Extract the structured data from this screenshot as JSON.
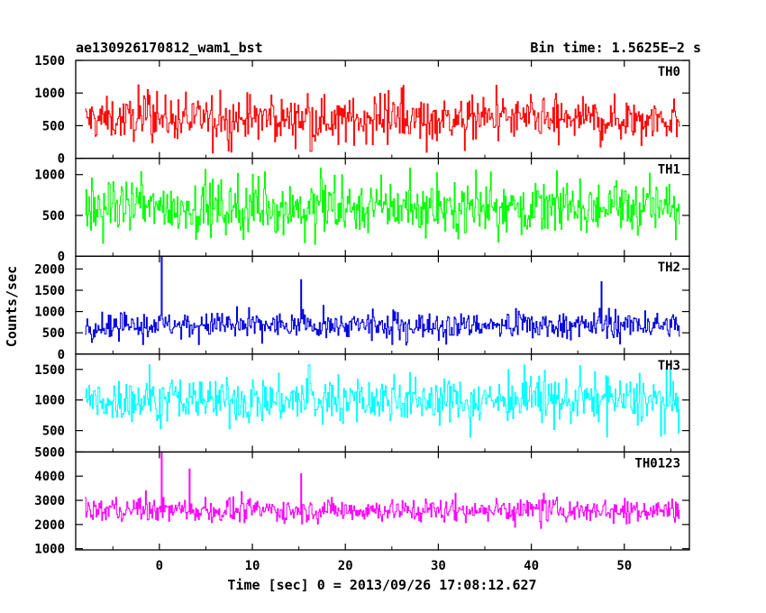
{
  "header": {
    "title": "ae130926170812_wam1_bst",
    "bin_time": "Bin time: 1.5625E−2 s"
  },
  "chart_data": {
    "type": "line",
    "plot_style": "histogram-step",
    "xlabel": "Time [sec] 0 = 2013/09/26 17:08:12.627",
    "ylabel": "Counts/sec",
    "xlim": [
      -9,
      57
    ],
    "x_ticks": [
      0,
      10,
      20,
      30,
      40,
      50
    ],
    "x_tick_labels": [
      "0",
      "10",
      "20",
      "30",
      "40",
      "50"
    ],
    "x_data_range": [
      -8,
      56
    ],
    "bin_time_s": 0.015625,
    "panels": [
      {
        "name": "TH0",
        "color": "#ff0000",
        "ylim": [
          0,
          1500
        ],
        "y_ticks": [
          0,
          500,
          1000,
          1500
        ],
        "y_tick_labels": [
          "0",
          "500",
          "1000",
          "1500"
        ],
        "mean": 600,
        "noise": 280,
        "min": 80,
        "max": 1500,
        "spikes": []
      },
      {
        "name": "TH1",
        "color": "#00ff00",
        "ylim": [
          0,
          1200
        ],
        "y_ticks": [
          0,
          500,
          1000
        ],
        "y_tick_labels": [
          "0",
          "500",
          "1000"
        ],
        "mean": 600,
        "noise": 280,
        "min": 20,
        "max": 1200,
        "spikes": []
      },
      {
        "name": "TH2",
        "color": "#0000dd",
        "ylim": [
          0,
          2300
        ],
        "y_ticks": [
          0,
          500,
          1000,
          1500,
          2000
        ],
        "y_tick_labels": [
          "0",
          "500",
          "1000",
          "1500",
          "2000"
        ],
        "mean": 680,
        "noise": 250,
        "min": 30,
        "max": 2300,
        "spikes": [
          {
            "x": 0.2,
            "y": 2300
          },
          {
            "x": 15.2,
            "y": 1750
          },
          {
            "x": 47.5,
            "y": 1700
          }
        ]
      },
      {
        "name": "TH3",
        "color": "#00ffff",
        "ylim": [
          150,
          1750
        ],
        "y_ticks": [
          500,
          1000,
          1500
        ],
        "y_tick_labels": [
          "500",
          "1000",
          "1500"
        ],
        "mean": 1000,
        "noise": 320,
        "min": 160,
        "max": 1750,
        "spikes": []
      },
      {
        "name": "TH0123",
        "color": "#ff00ff",
        "ylim": [
          950,
          5000
        ],
        "y_ticks": [
          1000,
          2000,
          3000,
          4000,
          5000
        ],
        "y_tick_labels": [
          "1000",
          "2000",
          "3000",
          "4000",
          "5000"
        ],
        "mean": 2600,
        "noise": 420,
        "min": 1100,
        "max": 5000,
        "spikes": [
          {
            "x": 0.2,
            "y": 5000
          },
          {
            "x": 3.2,
            "y": 4300
          },
          {
            "x": 15.2,
            "y": 4100
          }
        ]
      }
    ]
  }
}
